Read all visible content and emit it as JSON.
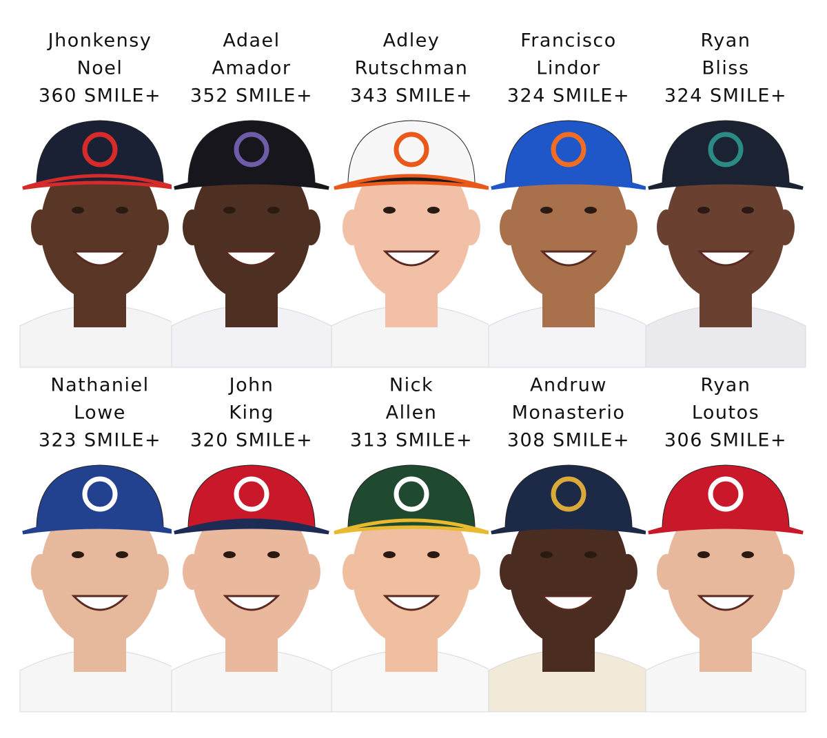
{
  "players": [
    {
      "first": "Jhonkensy",
      "last": "Noel",
      "score": "360 SMILE+"
    },
    {
      "first": "Adael",
      "last": "Amador",
      "score": "352 SMILE+"
    },
    {
      "first": "Adley",
      "last": "Rutschman",
      "score": "343 SMILE+"
    },
    {
      "first": "Francisco",
      "last": "Lindor",
      "score": "324 SMILE+"
    },
    {
      "first": "Ryan",
      "last": "Bliss",
      "score": "324 SMILE+"
    },
    {
      "first": "Nathaniel",
      "last": "Lowe",
      "score": "323 SMILE+"
    },
    {
      "first": "John",
      "last": "King",
      "score": "320 SMILE+"
    },
    {
      "first": "Nick",
      "last": "Allen",
      "score": "313 SMILE+"
    },
    {
      "first": "Andruw",
      "last": "Monasterio",
      "score": "308 SMILE+"
    },
    {
      "first": "Ryan",
      "last": "Loutos",
      "score": "306 SMILE+"
    }
  ]
}
